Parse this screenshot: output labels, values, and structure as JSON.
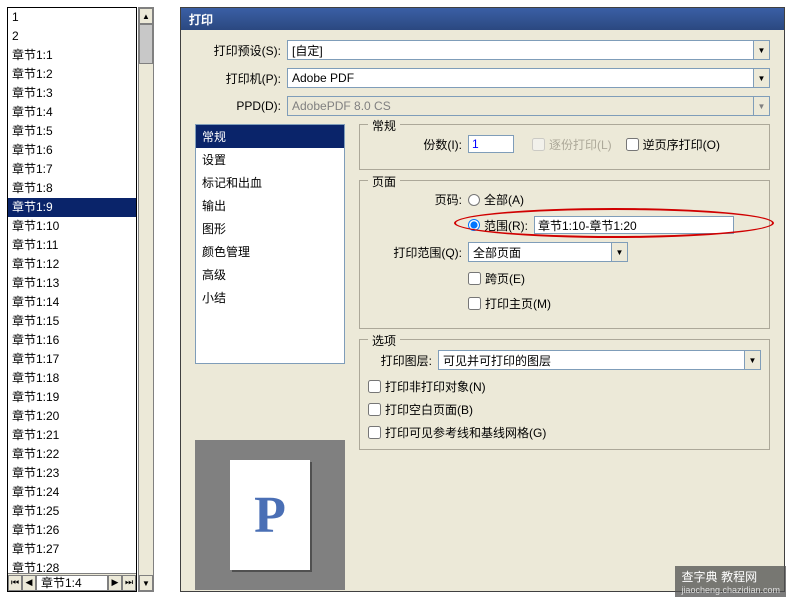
{
  "chapters": {
    "items": [
      "1",
      "2",
      "章节1:1",
      "章节1:2",
      "章节1:3",
      "章节1:4",
      "章节1:5",
      "章节1:6",
      "章节1:7",
      "章节1:8",
      "章节1:9",
      "章节1:10",
      "章节1:11",
      "章节1:12",
      "章节1:13",
      "章节1:14",
      "章节1:15",
      "章节1:16",
      "章节1:17",
      "章节1:18",
      "章节1:19",
      "章节1:20",
      "章节1:21",
      "章节1:22",
      "章节1:23",
      "章节1:24",
      "章节1:25",
      "章节1:26",
      "章节1:27",
      "章节1:28"
    ],
    "selected_index": 10,
    "footer_label": "章节1:4"
  },
  "dialog": {
    "title": "打印",
    "preset": {
      "label": "打印预设(S):",
      "value": "[自定]"
    },
    "printer": {
      "label": "打印机(P):",
      "value": "Adobe PDF"
    },
    "ppd": {
      "label": "PPD(D):",
      "value": "AdobePDF 8.0 CS"
    },
    "categories": {
      "items": [
        "常规",
        "设置",
        "标记和出血",
        "输出",
        "图形",
        "颜色管理",
        "高级",
        "小结"
      ],
      "selected_index": 0
    },
    "general": {
      "legend": "常规",
      "copies": {
        "label": "份数(I):",
        "value": "1"
      },
      "collate": "逐份打印(L)",
      "reverse": "逆页序打印(O)"
    },
    "pages": {
      "legend": "页面",
      "page_label": "页码:",
      "all": "全部(A)",
      "range_label": "范围(R):",
      "range_value": "章节1:10-章节1:20",
      "scope_label": "打印范围(Q):",
      "scope_value": "全部页面",
      "spread": "跨页(E)",
      "master": "打印主页(M)"
    },
    "options": {
      "legend": "选项",
      "layer_label": "打印图层:",
      "layer_value": "可见并可打印的图层",
      "nonprint": "打印非打印对象(N)",
      "blank": "打印空白页面(B)",
      "guides": "打印可见参考线和基线网格(G)"
    },
    "preview_glyph": "P"
  },
  "watermark": {
    "main": "查字典",
    "sub": "jiaocheng.chazidian.com",
    "tag": "教程网"
  }
}
